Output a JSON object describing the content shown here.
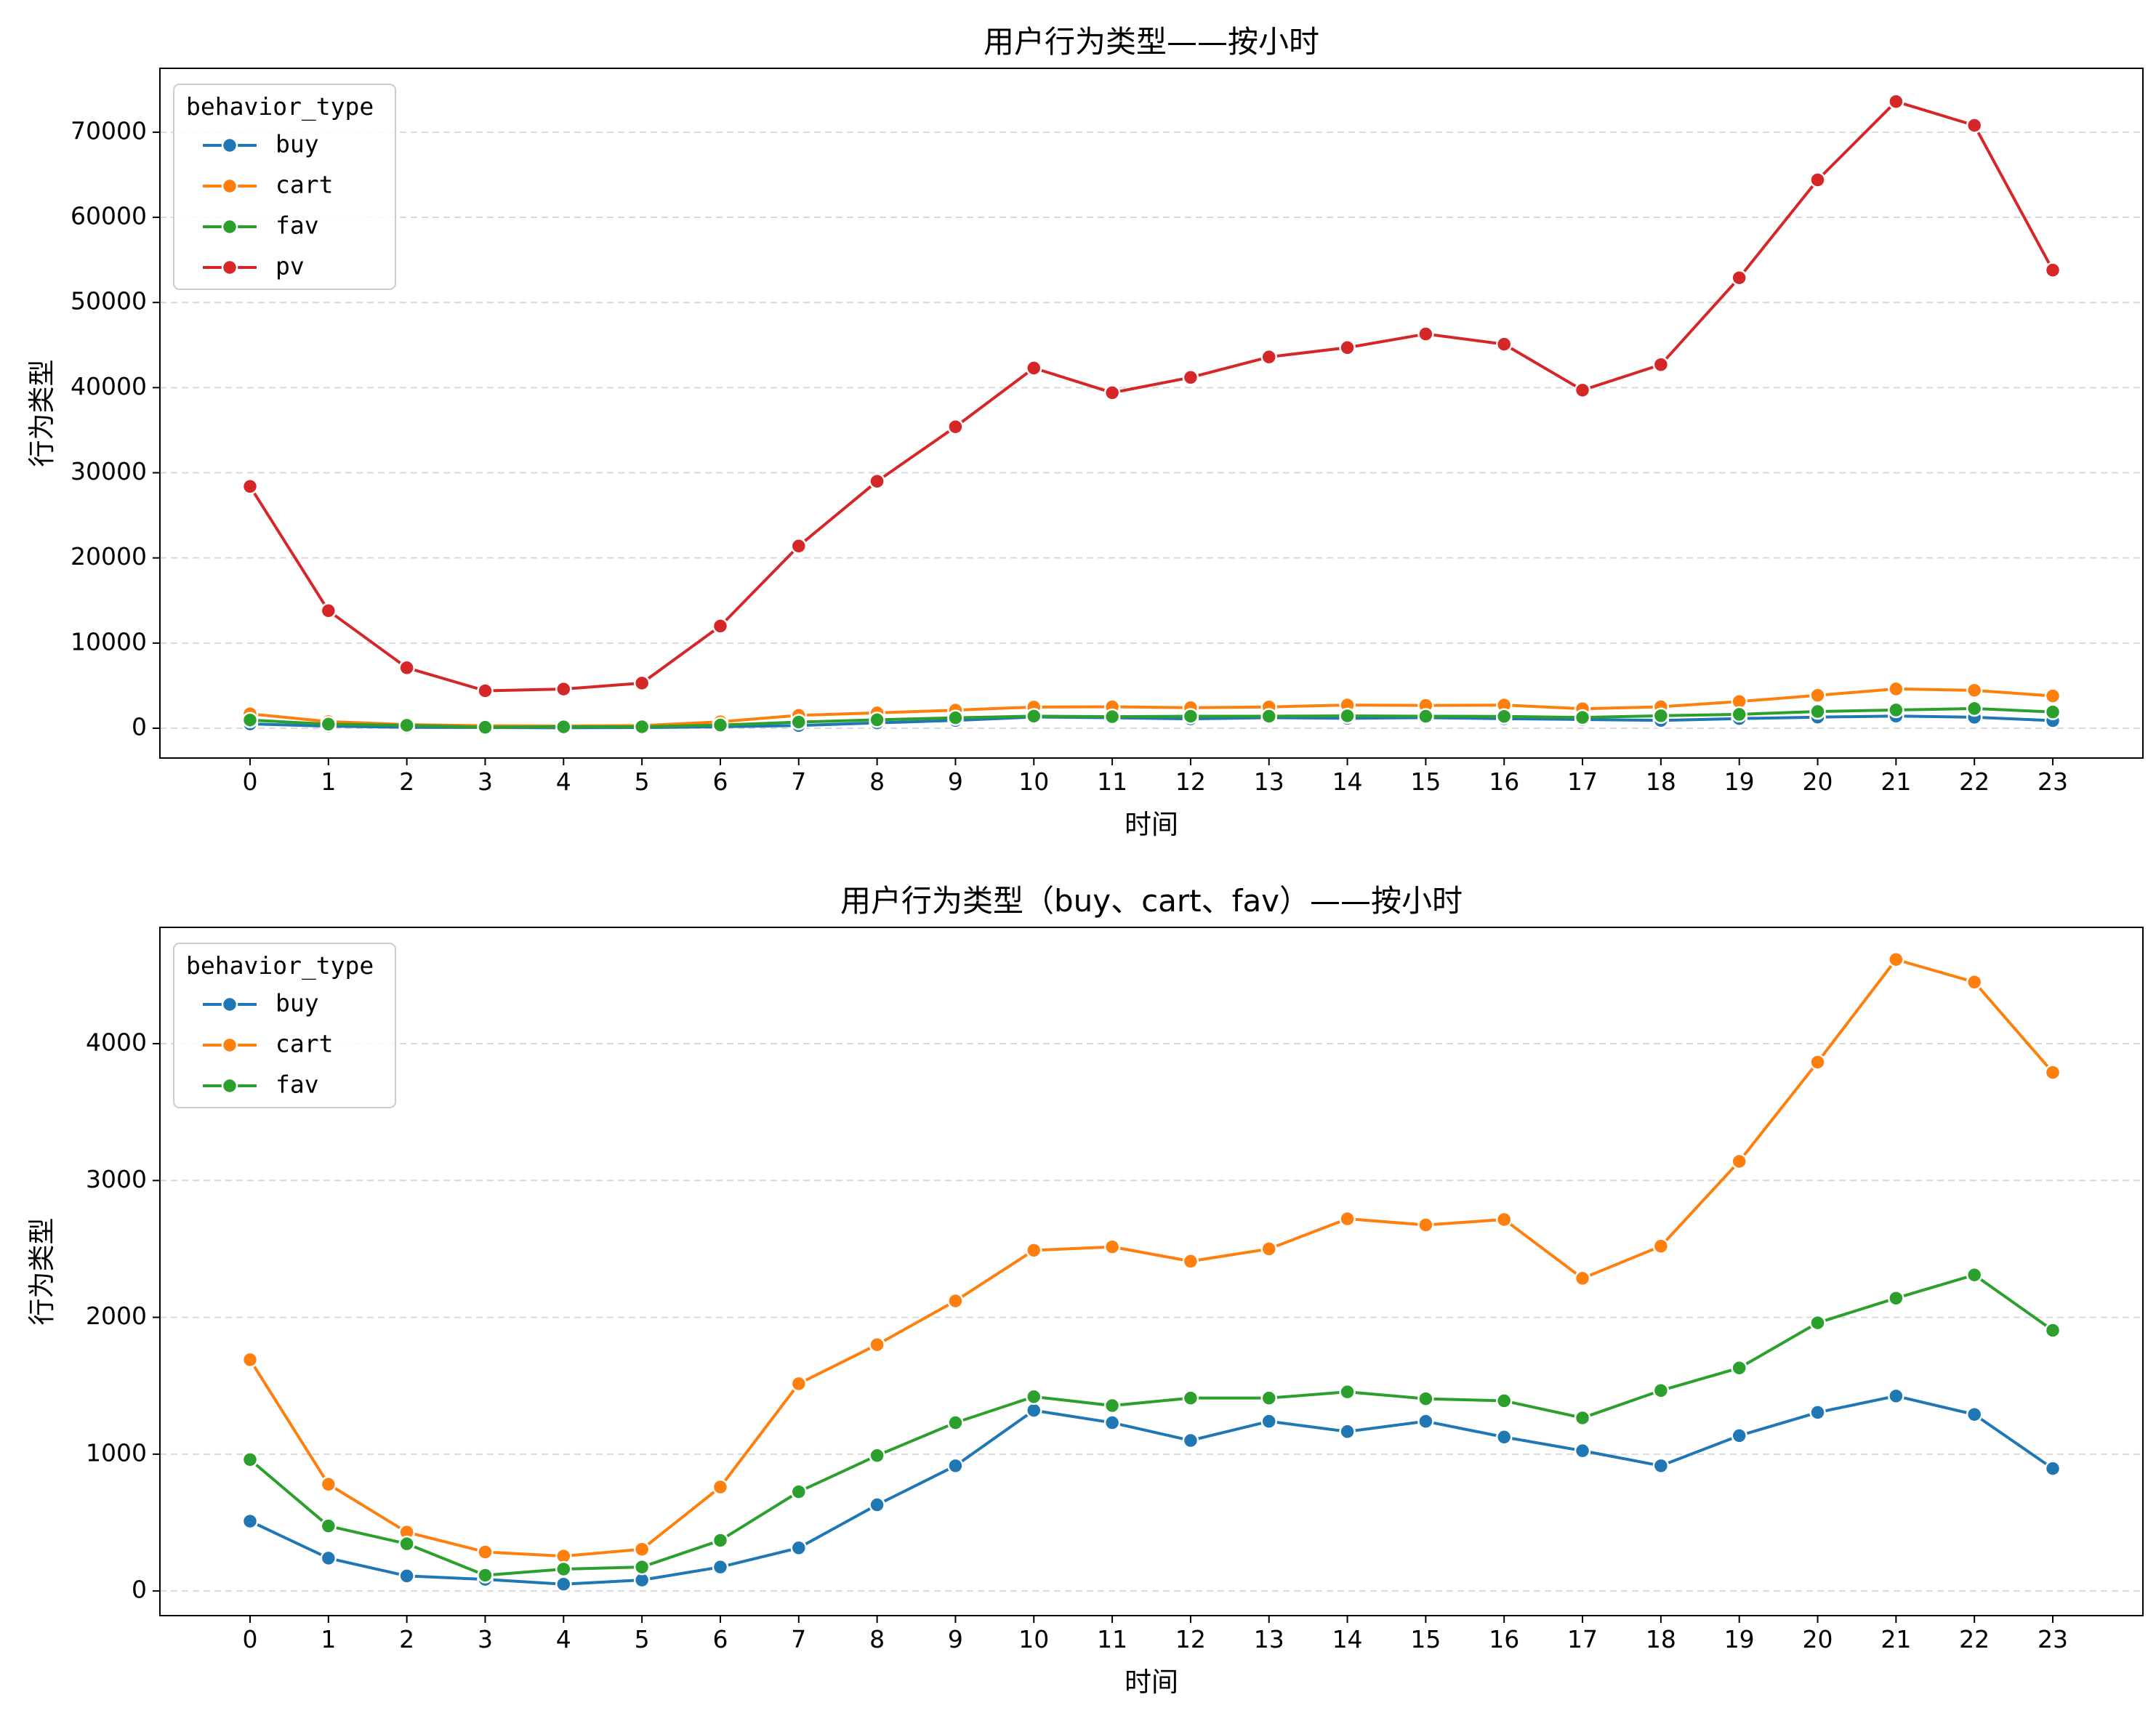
{
  "chart_data": [
    {
      "type": "line",
      "title": "用户行为类型——按小时",
      "xlabel": "时间",
      "ylabel": "行为类型",
      "x": [
        0,
        1,
        2,
        3,
        4,
        5,
        6,
        7,
        8,
        9,
        10,
        11,
        12,
        13,
        14,
        15,
        16,
        17,
        18,
        19,
        20,
        21,
        22,
        23
      ],
      "xlim": [
        -1.15,
        24.15
      ],
      "ylim": [
        -3500,
        77500
      ],
      "yticks": [
        0,
        10000,
        20000,
        30000,
        40000,
        50000,
        60000,
        70000
      ],
      "grid": "y-dashed",
      "legend": {
        "title": "behavior_type",
        "position": "top-left"
      },
      "series": [
        {
          "name": "buy",
          "color": "#1f77b4",
          "values": [
            510,
            240,
            110,
            85,
            50,
            80,
            175,
            315,
            630,
            915,
            1320,
            1230,
            1100,
            1240,
            1165,
            1240,
            1125,
            1025,
            915,
            1135,
            1305,
            1425,
            1290,
            895
          ]
        },
        {
          "name": "cart",
          "color": "#ff7f0e",
          "values": [
            1690,
            780,
            430,
            285,
            255,
            305,
            760,
            1515,
            1800,
            2120,
            2490,
            2515,
            2410,
            2500,
            2720,
            2675,
            2715,
            2285,
            2520,
            3140,
            3865,
            4615,
            4450,
            3790
          ]
        },
        {
          "name": "fav",
          "color": "#2ca02c",
          "values": [
            960,
            475,
            345,
            115,
            160,
            175,
            370,
            725,
            990,
            1230,
            1420,
            1355,
            1410,
            1410,
            1455,
            1405,
            1390,
            1265,
            1465,
            1630,
            1960,
            2140,
            2310,
            1905
          ]
        },
        {
          "name": "pv",
          "color": "#d62728",
          "values": [
            28400,
            13800,
            7100,
            4400,
            4600,
            5300,
            12000,
            21400,
            29000,
            35400,
            42300,
            39400,
            41200,
            43600,
            44700,
            46300,
            45100,
            39700,
            42700,
            52900,
            64400,
            73600,
            70800,
            53800
          ]
        }
      ]
    },
    {
      "type": "line",
      "title": "用户行为类型（buy、cart、fav）——按小时",
      "xlabel": "时间",
      "ylabel": "行为类型",
      "x": [
        0,
        1,
        2,
        3,
        4,
        5,
        6,
        7,
        8,
        9,
        10,
        11,
        12,
        13,
        14,
        15,
        16,
        17,
        18,
        19,
        20,
        21,
        22,
        23
      ],
      "xlim": [
        -1.15,
        24.15
      ],
      "ylim": [
        -180,
        4850
      ],
      "yticks": [
        0,
        1000,
        2000,
        3000,
        4000
      ],
      "grid": "y-dashed",
      "legend": {
        "title": "behavior_type",
        "position": "top-left"
      },
      "series": [
        {
          "name": "buy",
          "color": "#1f77b4",
          "values": [
            510,
            240,
            110,
            85,
            50,
            80,
            175,
            315,
            630,
            915,
            1320,
            1230,
            1100,
            1240,
            1165,
            1240,
            1125,
            1025,
            915,
            1135,
            1305,
            1425,
            1290,
            895
          ]
        },
        {
          "name": "cart",
          "color": "#ff7f0e",
          "values": [
            1690,
            780,
            430,
            285,
            255,
            305,
            760,
            1515,
            1800,
            2120,
            2490,
            2515,
            2410,
            2500,
            2720,
            2675,
            2715,
            2285,
            2520,
            3140,
            3865,
            4615,
            4450,
            3790
          ]
        },
        {
          "name": "fav",
          "color": "#2ca02c",
          "values": [
            960,
            475,
            345,
            115,
            160,
            175,
            370,
            725,
            990,
            1230,
            1420,
            1355,
            1410,
            1410,
            1455,
            1405,
            1390,
            1265,
            1465,
            1630,
            1960,
            2140,
            2310,
            1905
          ]
        }
      ]
    }
  ]
}
